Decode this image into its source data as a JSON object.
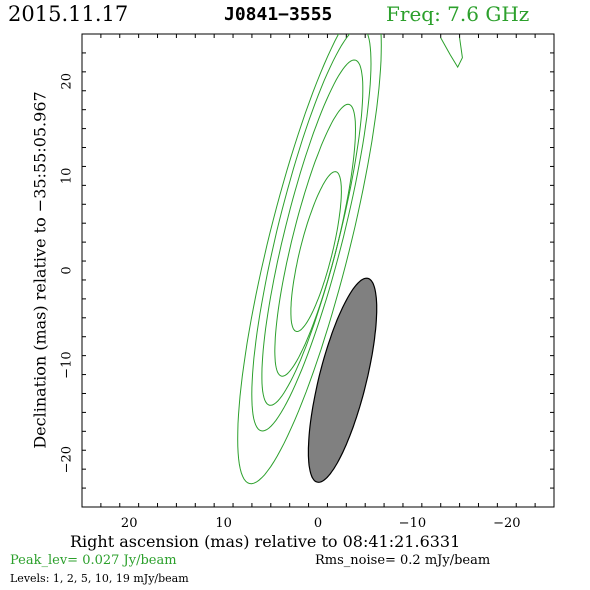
{
  "header": {
    "date": "2015.11.17",
    "source": "J0841−3555",
    "frequency": "Freq: 7.6 GHz"
  },
  "footer": {
    "peak": "Peak_lev=  0.027 Jy/beam",
    "rms": "Rms_noise=  0.2 mJy/beam",
    "levels": "Levels:   1,   2,   5,  10,  19 mJy/beam"
  },
  "colors": {
    "contour": "#2ca02c",
    "beam_fill": "#808080",
    "axes": "#000000"
  },
  "chart_data": {
    "type": "contour",
    "xlabel": "Right ascension (mas) relative to 08:41:21.6331",
    "ylabel": "Declination (mas) relative to −35:55:05.967",
    "xlim": [
      25,
      -25
    ],
    "ylim": [
      -25,
      25
    ],
    "x_ticks": [
      20,
      10,
      0,
      -10,
      -20
    ],
    "y_ticks": [
      20,
      10,
      0,
      -10,
      -20
    ],
    "x_tick_labels": [
      "20",
      "10",
      "0",
      "−10",
      "−20"
    ],
    "y_tick_labels": [
      "20",
      "10",
      "0",
      "−10",
      "−20"
    ],
    "contour_levels_mjy": [
      1,
      2,
      5,
      10,
      19
    ],
    "contours": [
      {
        "level": 1,
        "center": [
          0.9,
          3.0
        ],
        "semi_major": 26.3,
        "semi_minor": 4.3,
        "angle_deg": 14
      },
      {
        "level": 2,
        "center": [
          0.7,
          4.4
        ],
        "semi_major": 22.0,
        "semi_minor": 3.5,
        "angle_deg": 14
      },
      {
        "level": 5,
        "center": [
          0.6,
          4.0
        ],
        "semi_major": 18.8,
        "semi_minor": 2.9,
        "angle_deg": 14
      },
      {
        "level": 10,
        "center": [
          0.3,
          3.2
        ],
        "semi_major": 14.8,
        "semi_minor": 2.4,
        "angle_deg": 14
      },
      {
        "level": 19,
        "center": [
          0.2,
          2.0
        ],
        "semi_major": 8.7,
        "semi_minor": 1.7,
        "angle_deg": 14
      }
    ],
    "beam": {
      "center": [
        -2.6,
        -11.6
      ],
      "semi_major": 11.1,
      "semi_minor": 2.5,
      "angle_deg": 14
    },
    "corner_feature": {
      "x": [
        -13.0,
        -14.0,
        -14.8,
        -15.3,
        -15.0
      ],
      "y": [
        24.6,
        22.8,
        21.5,
        22.5,
        24.6
      ]
    }
  }
}
